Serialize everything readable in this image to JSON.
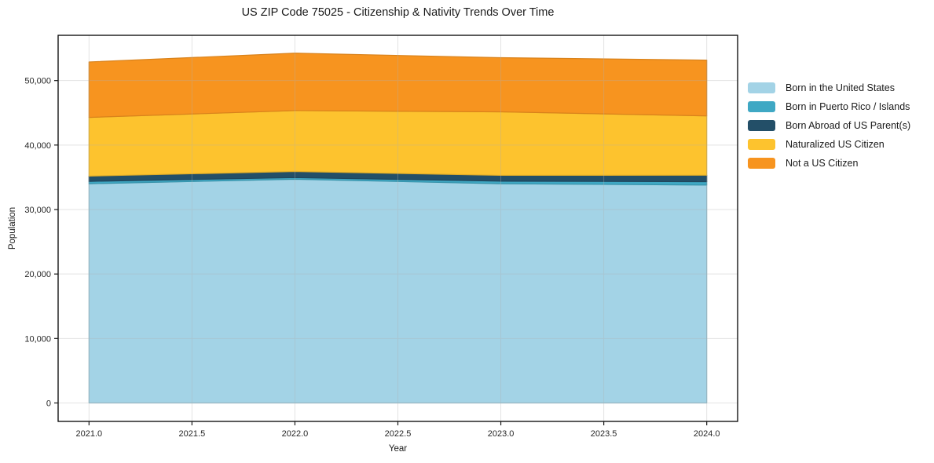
{
  "chart_data": {
    "type": "area",
    "stacked": true,
    "title": "US ZIP Code 75025 - Citizenship & Nativity Trends Over Time",
    "xlabel": "Year",
    "ylabel": "Population",
    "x": [
      2021,
      2022,
      2023,
      2024
    ],
    "series": [
      {
        "name": "Born in the United States",
        "color": "#a3d3e6",
        "values": [
          34000,
          34700,
          34000,
          33800
        ]
      },
      {
        "name": "Born in Puerto Rico / Islands",
        "color": "#3fa8c4",
        "values": [
          370,
          250,
          400,
          520
        ]
      },
      {
        "name": "Born Abroad of US Parent(s)",
        "color": "#234f68",
        "values": [
          820,
          950,
          900,
          1000
        ]
      },
      {
        "name": "Naturalized US Citizen",
        "color": "#fdc32e",
        "values": [
          9100,
          9450,
          9850,
          9200
        ]
      },
      {
        "name": "Not a US Citizen",
        "color": "#f7941f",
        "values": [
          8600,
          8900,
          8400,
          8650
        ]
      }
    ],
    "xlim": [
      2020.85,
      2024.15
    ],
    "ylim": [
      -2860,
      57020
    ],
    "x_ticks": {
      "values": [
        2021.0,
        2021.5,
        2022.0,
        2022.5,
        2023.0,
        2023.5,
        2024.0
      ],
      "labels": [
        "2021.0",
        "2021.5",
        "2022.0",
        "2022.5",
        "2023.0",
        "2023.5",
        "2024.0"
      ]
    },
    "y_ticks": {
      "values": [
        0,
        10000,
        20000,
        30000,
        40000,
        50000
      ],
      "labels": [
        "0",
        "10,000",
        "20,000",
        "30,000",
        "40,000",
        "50,000"
      ]
    },
    "grid": true,
    "legend_position": "right",
    "colors": {
      "spine": "#000000",
      "tick": "#1a1a1a",
      "tick_label": "#262626",
      "grid": "#b0b0b0"
    }
  }
}
